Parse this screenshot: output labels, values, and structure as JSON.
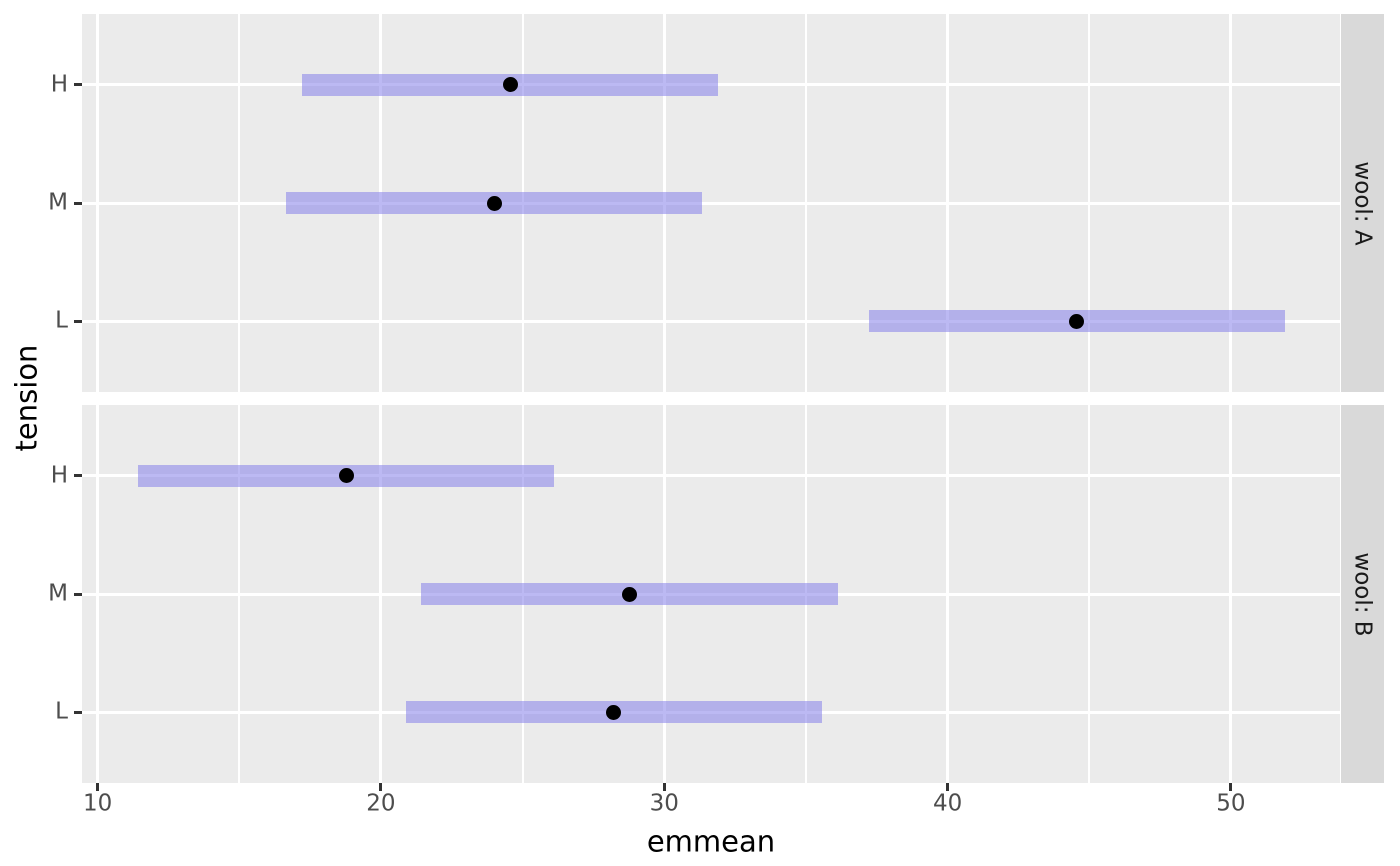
{
  "chart_data": {
    "type": "interval",
    "description": "Faceted horizontal confidence-interval plot of estimated marginal means (emmeans) of warp breaks by tension, faceted by wool",
    "xlabel": "emmean",
    "ylabel": "tension",
    "x_axis": {
      "major_ticks": [
        10,
        20,
        30,
        40,
        50
      ],
      "minor_gridlines": [
        15,
        25,
        35,
        45
      ],
      "range": [
        9.45,
        53.85
      ]
    },
    "y_axis": {
      "categories_top_to_bottom": [
        "H",
        "M",
        "L"
      ]
    },
    "facets": [
      {
        "strip_label": "wool: A",
        "rows": [
          {
            "tension": "H",
            "emmean": 24.56,
            "ci_lower": 17.21,
            "ci_upper": 31.9
          },
          {
            "tension": "M",
            "emmean": 24.0,
            "ci_lower": 16.66,
            "ci_upper": 31.34
          },
          {
            "tension": "L",
            "emmean": 44.56,
            "ci_lower": 37.21,
            "ci_upper": 51.9
          }
        ]
      },
      {
        "strip_label": "wool: B",
        "rows": [
          {
            "tension": "H",
            "emmean": 18.78,
            "ci_lower": 11.43,
            "ci_upper": 26.12
          },
          {
            "tension": "M",
            "emmean": 28.78,
            "ci_lower": 21.43,
            "ci_upper": 36.12
          },
          {
            "tension": "L",
            "emmean": 28.22,
            "ci_lower": 20.88,
            "ci_upper": 35.57
          }
        ]
      }
    ],
    "grid": true,
    "legend": null,
    "colors": {
      "panel_background": "#EBEBEB",
      "strip_background": "#D9D9D9",
      "gridline": "#FFFFFF",
      "interval_bar": "#8580EA",
      "interval_bar_alpha": 0.55,
      "point": "#000000",
      "tick_label": "#4D4D4D",
      "tick_mark": "#333333",
      "axis_title": "#000000",
      "strip_text": "#1A1A1A"
    }
  }
}
